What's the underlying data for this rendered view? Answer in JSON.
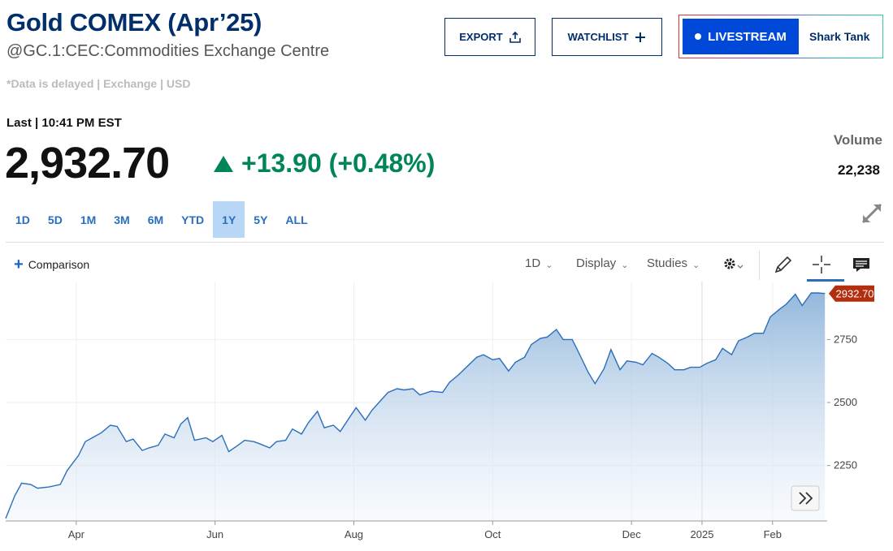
{
  "header": {
    "title": "Gold COMEX (Apr’25)",
    "subtitle": "@GC.1:CEC:Commodities Exchange Centre",
    "delayed_note": "*Data is delayed | Exchange | USD"
  },
  "actions": {
    "export_label": "EXPORT",
    "watchlist_label": "WATCHLIST",
    "livestream_label": "LIVESTREAM",
    "show_label": "Shark Tank"
  },
  "quote": {
    "last_label": "Last | 10:41 PM EST",
    "price": "2,932.70",
    "change": "+13.90 (+0.48%)",
    "volume_label": "Volume",
    "volume": "22,238",
    "up_color": "#00845a"
  },
  "ranges": [
    "1D",
    "5D",
    "1M",
    "3M",
    "6M",
    "YTD",
    "1Y",
    "5Y",
    "ALL"
  ],
  "active_range": "1Y",
  "toolbar": {
    "comparison_label": "Comparison",
    "interval_label": "1D",
    "display_label": "Display",
    "studies_label": "Studies",
    "icons": [
      "gear-icon",
      "pencil-icon",
      "crosshair-icon",
      "comment-icon"
    ]
  },
  "chart_data": {
    "type": "area",
    "y_ticks": [
      2250,
      2500,
      2750
    ],
    "x_ticks": [
      "Apr",
      "Jun",
      "Aug",
      "Oct",
      "Dec",
      "2025",
      "Feb"
    ],
    "ylim": [
      2030,
      2980
    ],
    "last_value_label": "2932.70",
    "line_color": "#2a6ebb",
    "badge_color": "#b32d0f",
    "points": [
      [
        "2024-03-01",
        2040
      ],
      [
        "2024-03-05",
        2130
      ],
      [
        "2024-03-08",
        2180
      ],
      [
        "2024-03-12",
        2175
      ],
      [
        "2024-03-15",
        2160
      ],
      [
        "2024-03-20",
        2165
      ],
      [
        "2024-03-25",
        2175
      ],
      [
        "2024-03-28",
        2230
      ],
      [
        "2024-04-02",
        2290
      ],
      [
        "2024-04-05",
        2345
      ],
      [
        "2024-04-09",
        2365
      ],
      [
        "2024-04-12",
        2380
      ],
      [
        "2024-04-16",
        2410
      ],
      [
        "2024-04-19",
        2405
      ],
      [
        "2024-04-23",
        2345
      ],
      [
        "2024-04-26",
        2355
      ],
      [
        "2024-04-30",
        2310
      ],
      [
        "2024-05-03",
        2320
      ],
      [
        "2024-05-07",
        2330
      ],
      [
        "2024-05-10",
        2375
      ],
      [
        "2024-05-14",
        2360
      ],
      [
        "2024-05-17",
        2415
      ],
      [
        "2024-05-20",
        2440
      ],
      [
        "2024-05-23",
        2350
      ],
      [
        "2024-05-28",
        2360
      ],
      [
        "2024-05-31",
        2345
      ],
      [
        "2024-06-04",
        2370
      ],
      [
        "2024-06-07",
        2305
      ],
      [
        "2024-06-11",
        2330
      ],
      [
        "2024-06-14",
        2350
      ],
      [
        "2024-06-18",
        2345
      ],
      [
        "2024-06-21",
        2335
      ],
      [
        "2024-06-25",
        2320
      ],
      [
        "2024-06-28",
        2345
      ],
      [
        "2024-07-02",
        2350
      ],
      [
        "2024-07-05",
        2395
      ],
      [
        "2024-07-09",
        2375
      ],
      [
        "2024-07-12",
        2420
      ],
      [
        "2024-07-16",
        2465
      ],
      [
        "2024-07-19",
        2400
      ],
      [
        "2024-07-23",
        2410
      ],
      [
        "2024-07-26",
        2385
      ],
      [
        "2024-07-30",
        2440
      ],
      [
        "2024-08-02",
        2480
      ],
      [
        "2024-08-06",
        2430
      ],
      [
        "2024-08-09",
        2470
      ],
      [
        "2024-08-13",
        2510
      ],
      [
        "2024-08-16",
        2540
      ],
      [
        "2024-08-20",
        2555
      ],
      [
        "2024-08-23",
        2550
      ],
      [
        "2024-08-27",
        2555
      ],
      [
        "2024-08-30",
        2530
      ],
      [
        "2024-09-04",
        2545
      ],
      [
        "2024-09-09",
        2540
      ],
      [
        "2024-09-12",
        2580
      ],
      [
        "2024-09-16",
        2610
      ],
      [
        "2024-09-20",
        2645
      ],
      [
        "2024-09-24",
        2680
      ],
      [
        "2024-09-27",
        2690
      ],
      [
        "2024-10-01",
        2670
      ],
      [
        "2024-10-04",
        2675
      ],
      [
        "2024-10-08",
        2625
      ],
      [
        "2024-10-11",
        2660
      ],
      [
        "2024-10-15",
        2680
      ],
      [
        "2024-10-18",
        2730
      ],
      [
        "2024-10-22",
        2755
      ],
      [
        "2024-10-25",
        2760
      ],
      [
        "2024-10-29",
        2790
      ],
      [
        "2024-11-01",
        2750
      ],
      [
        "2024-11-05",
        2750
      ],
      [
        "2024-11-08",
        2695
      ],
      [
        "2024-11-12",
        2620
      ],
      [
        "2024-11-15",
        2575
      ],
      [
        "2024-11-19",
        2635
      ],
      [
        "2024-11-22",
        2710
      ],
      [
        "2024-11-26",
        2630
      ],
      [
        "2024-11-29",
        2665
      ],
      [
        "2024-12-03",
        2660
      ],
      [
        "2024-12-06",
        2650
      ],
      [
        "2024-12-10",
        2695
      ],
      [
        "2024-12-13",
        2680
      ],
      [
        "2024-12-17",
        2655
      ],
      [
        "2024-12-20",
        2630
      ],
      [
        "2024-12-24",
        2630
      ],
      [
        "2024-12-27",
        2640
      ],
      [
        "2024-12-31",
        2640
      ],
      [
        "2025-01-03",
        2655
      ],
      [
        "2025-01-07",
        2670
      ],
      [
        "2025-01-10",
        2715
      ],
      [
        "2025-01-14",
        2690
      ],
      [
        "2025-01-17",
        2745
      ],
      [
        "2025-01-21",
        2760
      ],
      [
        "2025-01-24",
        2775
      ],
      [
        "2025-01-28",
        2775
      ],
      [
        "2025-01-31",
        2840
      ],
      [
        "2025-02-04",
        2870
      ],
      [
        "2025-02-07",
        2890
      ],
      [
        "2025-02-11",
        2930
      ],
      [
        "2025-02-14",
        2885
      ],
      [
        "2025-02-18",
        2935
      ],
      [
        "2025-02-21",
        2935
      ],
      [
        "2025-02-24",
        2932.7
      ]
    ]
  }
}
